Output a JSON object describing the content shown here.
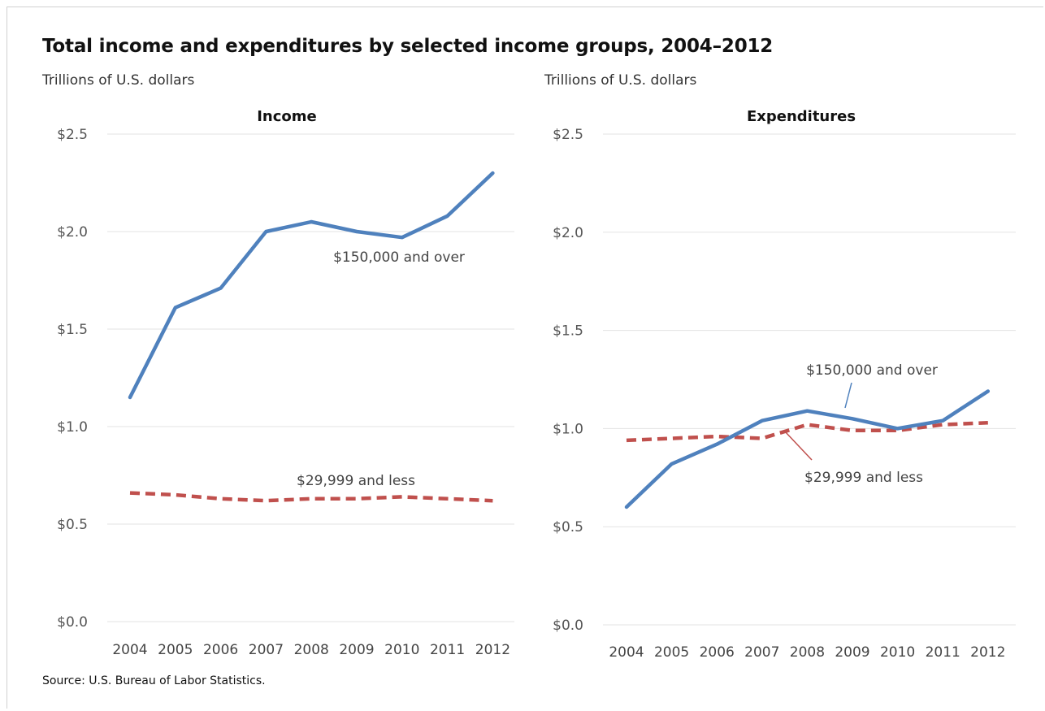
{
  "title": "Total income and expenditures by selected income groups, 2004–2012",
  "source": "Source: U.S. Bureau of Labor Statistics.",
  "colors": {
    "high": "#4f81bd",
    "low": "#c0504d"
  },
  "chart_data": [
    {
      "type": "line",
      "title": "Income",
      "ylabel": "Trillions of U.S. dollars",
      "x": [
        "2004",
        "2005",
        "2006",
        "2007",
        "2008",
        "2009",
        "2010",
        "2011",
        "2012"
      ],
      "ylim": [
        0,
        2.5
      ],
      "yticks": [
        "$0.0",
        "$0.5",
        "$1.0",
        "$1.5",
        "$2.0",
        "$2.5"
      ],
      "grid": true,
      "series": [
        {
          "name": "$150,000 and over",
          "style": "solid",
          "color": "#4f81bd",
          "values": [
            1.15,
            1.61,
            1.71,
            2.0,
            2.05,
            2.0,
            1.97,
            2.08,
            2.3
          ]
        },
        {
          "name": "$29,999 and less",
          "style": "dashed",
          "color": "#c0504d",
          "values": [
            0.66,
            0.65,
            0.63,
            0.62,
            0.63,
            0.63,
            0.64,
            0.63,
            0.62
          ]
        }
      ]
    },
    {
      "type": "line",
      "title": "Expenditures",
      "ylabel": "Trillions of U.S. dollars",
      "x": [
        "2004",
        "2005",
        "2006",
        "2007",
        "2008",
        "2009",
        "2010",
        "2011",
        "2012"
      ],
      "ylim": [
        0,
        2.5
      ],
      "yticks": [
        "$0.0",
        "$0.5",
        "$1.0",
        "$1.5",
        "$2.0",
        "$2.5"
      ],
      "grid": true,
      "series": [
        {
          "name": "$150,000 and over",
          "style": "solid",
          "color": "#4f81bd",
          "values": [
            0.6,
            0.82,
            0.92,
            1.04,
            1.09,
            1.05,
            1.0,
            1.04,
            1.19
          ]
        },
        {
          "name": "$29,999 and less",
          "style": "dashed",
          "color": "#c0504d",
          "values": [
            0.94,
            0.95,
            0.96,
            0.95,
            1.02,
            0.99,
            0.99,
            1.02,
            1.03
          ]
        }
      ]
    }
  ]
}
